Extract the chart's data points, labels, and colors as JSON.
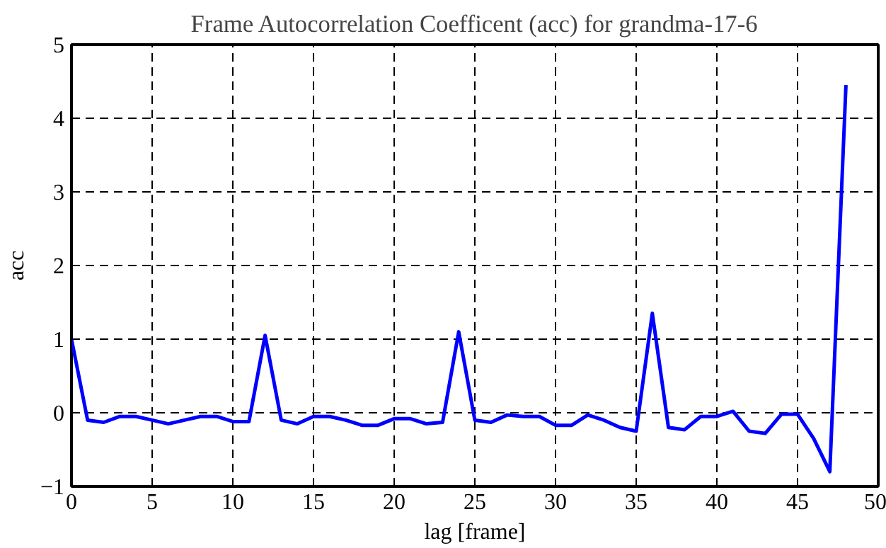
{
  "chart_data": {
    "type": "line",
    "title": "Frame Autocorrelation Coefficent (acc) for grandma-17-6",
    "xlabel": "lag [frame]",
    "ylabel": "acc",
    "x": [
      0,
      1,
      2,
      3,
      4,
      5,
      6,
      7,
      8,
      9,
      10,
      11,
      12,
      13,
      14,
      15,
      16,
      17,
      18,
      19,
      20,
      21,
      22,
      23,
      24,
      25,
      26,
      27,
      28,
      29,
      30,
      31,
      32,
      33,
      34,
      35,
      36,
      37,
      38,
      39,
      40,
      41,
      42,
      43,
      44,
      45,
      46,
      47,
      48
    ],
    "series": [
      {
        "color": "#0000ff",
        "values": [
          1.0,
          -0.1,
          -0.13,
          -0.05,
          -0.05,
          -0.1,
          -0.15,
          -0.1,
          -0.05,
          -0.05,
          -0.12,
          -0.12,
          1.05,
          -0.1,
          -0.15,
          -0.05,
          -0.05,
          -0.1,
          -0.17,
          -0.17,
          -0.08,
          -0.08,
          -0.15,
          -0.13,
          1.1,
          -0.1,
          -0.13,
          -0.03,
          -0.05,
          -0.05,
          -0.17,
          -0.17,
          -0.03,
          -0.1,
          -0.2,
          -0.25,
          1.35,
          -0.2,
          -0.23,
          -0.05,
          -0.05,
          0.02,
          -0.25,
          -0.28,
          -0.02,
          -0.02,
          -0.35,
          -0.8,
          4.45
        ]
      }
    ],
    "xlim": [
      0,
      50
    ],
    "ylim": [
      -1,
      5
    ],
    "xticks": [
      0,
      5,
      10,
      15,
      20,
      25,
      30,
      35,
      40,
      45,
      50
    ],
    "yticks": [
      -1,
      0,
      1,
      2,
      3,
      4,
      5
    ],
    "grid": true,
    "marker": "none",
    "line_style": "solid"
  }
}
